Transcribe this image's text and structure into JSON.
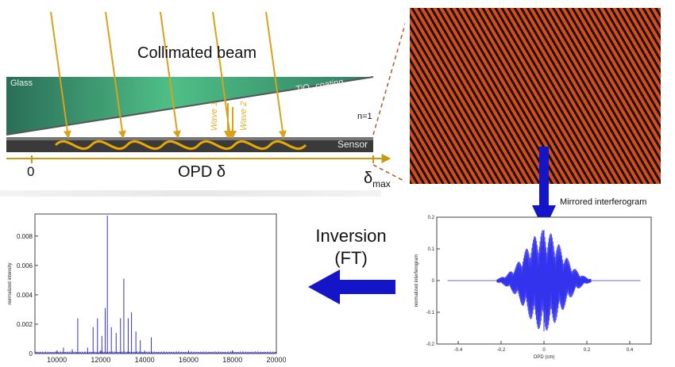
{
  "top_diagram": {
    "title": "Collimated beam",
    "glass_label": "Glass",
    "coating_label": "TiO",
    "coating_sub": "2",
    "coating_suffix": " coating",
    "wave1_label": "Wave 1",
    "wave2_label": "Wave 2",
    "n_label": "n=1",
    "sensor_label": "Sensor",
    "axis_zero": "0",
    "axis_label": "OPD δ",
    "axis_max": "δ",
    "axis_max_sub": "max",
    "colors": {
      "glass": "#2f7f63",
      "ray": "#d9a21a",
      "sensor": "#3a3a3a",
      "fringe_dark": "#111111",
      "fringe_light": "#d94a1a"
    }
  },
  "interferogram_label": "Mirrored interferogram",
  "inversion": {
    "line1": "Inversion",
    "line2": "(FT)",
    "arrow_color": "#1414c8"
  },
  "spectrum_chart": {
    "chart_data": {
      "type": "line",
      "ylabel": "normalized intensity",
      "xlim": [
        9000,
        20000
      ],
      "ylim": [
        0,
        0.0095
      ],
      "x_ticks": [
        "10000",
        "12000",
        "14000",
        "16000",
        "18000",
        "20000"
      ],
      "y_ticks": [
        "0",
        "0.002",
        "0.004",
        "0.006",
        "0.008"
      ],
      "series": [
        {
          "color": "#3333cc",
          "peaks": [
            {
              "x": 10300,
              "y": 0.0004
            },
            {
              "x": 10950,
              "y": 0.0024
            },
            {
              "x": 11650,
              "y": 0.0018
            },
            {
              "x": 11850,
              "y": 0.0024
            },
            {
              "x": 12050,
              "y": 0.0012
            },
            {
              "x": 12200,
              "y": 0.0031
            },
            {
              "x": 12300,
              "y": 0.0094
            },
            {
              "x": 12480,
              "y": 0.0018
            },
            {
              "x": 12900,
              "y": 0.0024
            },
            {
              "x": 13050,
              "y": 0.0051
            },
            {
              "x": 13250,
              "y": 0.0024
            },
            {
              "x": 13400,
              "y": 0.0028
            },
            {
              "x": 13600,
              "y": 0.0015
            },
            {
              "x": 14300,
              "y": 0.0011
            },
            {
              "x": 10700,
              "y": 0.0003
            },
            {
              "x": 11400,
              "y": 0.0004
            },
            {
              "x": 12700,
              "y": 0.0014
            },
            {
              "x": 13800,
              "y": 0.0009
            }
          ]
        }
      ]
    }
  },
  "interferogram_chart": {
    "chart_data": {
      "type": "line",
      "xlabel": "OPD (cm)",
      "ylabel": "normalized interferogram",
      "xlim": [
        -0.5,
        0.5
      ],
      "ylim": [
        -0.2,
        0.2
      ],
      "x_ticks": [
        "-0.4",
        "-0.2",
        "0",
        "0.2",
        "0.4"
      ],
      "y_ticks": [
        "0.2",
        "0.1",
        "0",
        "-0.1",
        "-0.2"
      ],
      "series": [
        {
          "color": "#3333ee",
          "envelope_halfwidth_cm": 0.22,
          "peak_amplitude": 0.16
        }
      ]
    }
  }
}
